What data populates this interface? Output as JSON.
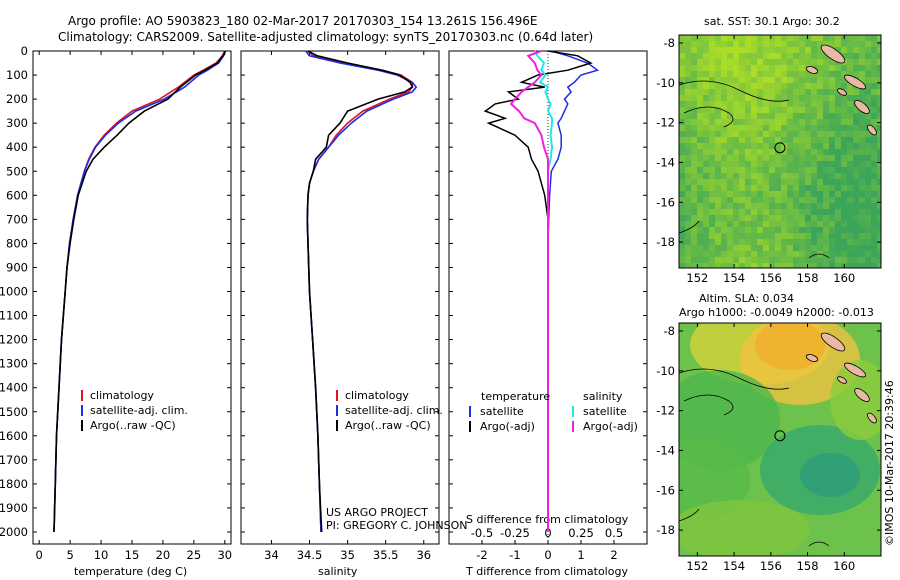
{
  "header": {
    "line1": "Argo profile: AO 5903823_180 02-Mar-2017 20170303_154 13.261S 156.496E",
    "line2": "Climatology: CARS2009. Satellite-adjusted climatology: synTS_20170303.nc (0.64d later)"
  },
  "colors": {
    "clim": "#e0141e",
    "sat": "#1c2ee6",
    "argo": "#000000",
    "sat_s": "#22e6e6",
    "argo_s": "#ee22dd"
  },
  "depth_ticks": [
    "0",
    "100",
    "200",
    "300",
    "400",
    "500",
    "600",
    "700",
    "800",
    "900",
    "1000",
    "1100",
    "1200",
    "1300",
    "1400",
    "1500",
    "1600",
    "1700",
    "1800",
    "1900",
    "2000"
  ],
  "chart_data": [
    {
      "type": "line",
      "xlabel": "temperature (deg C)",
      "xlim": [
        -1,
        31
      ],
      "ylim": [
        2000,
        0
      ],
      "xticks": [
        "0",
        "5",
        "10",
        "15",
        "20",
        "25",
        "30"
      ],
      "legend": [
        "climatology",
        "satellite-adj. clim.",
        "Argo(..raw -QC)"
      ],
      "depth": [
        0,
        20,
        50,
        80,
        100,
        150,
        200,
        250,
        300,
        350,
        400,
        450,
        500,
        600,
        700,
        800,
        900,
        1000,
        1200,
        1400,
        1600,
        1800,
        2000
      ],
      "series": [
        {
          "name": "climatology",
          "values": [
            30.0,
            29.6,
            28.6,
            26.5,
            25.0,
            22.5,
            19.5,
            15.0,
            12.5,
            10.5,
            9.0,
            8.0,
            7.3,
            6.2,
            5.5,
            4.9,
            4.5,
            4.2,
            3.6,
            3.2,
            2.8,
            2.6,
            2.4
          ]
        },
        {
          "name": "satellite-adj. clim.",
          "values": [
            30.1,
            29.8,
            29.0,
            27.2,
            25.8,
            23.5,
            20.2,
            15.6,
            12.8,
            10.7,
            9.1,
            8.1,
            7.3,
            6.2,
            5.5,
            4.9,
            4.5,
            4.2,
            3.6,
            3.2,
            2.8,
            2.6,
            2.4
          ]
        },
        {
          "name": "Argo(..raw -QC)",
          "values": [
            30.1,
            29.7,
            28.8,
            26.8,
            25.3,
            22.8,
            20.8,
            17.0,
            14.5,
            12.6,
            10.5,
            8.7,
            7.6,
            6.3,
            5.6,
            5.0,
            4.5,
            4.2,
            3.6,
            3.2,
            2.8,
            2.6,
            2.4
          ]
        }
      ]
    },
    {
      "type": "line",
      "xlabel": "salinity",
      "xlim": [
        33.6,
        36.2
      ],
      "ylim": [
        2000,
        0
      ],
      "xticks": [
        "34",
        "34.5",
        "35",
        "35.5",
        "36"
      ],
      "legend": [
        "climatology",
        "satellite-adj. clim.",
        "Argo(..raw -QC)"
      ],
      "depth": [
        0,
        20,
        50,
        80,
        100,
        130,
        150,
        170,
        200,
        250,
        300,
        350,
        400,
        450,
        500,
        550,
        600,
        700,
        800,
        1000,
        1200,
        1400,
        1600,
        1800,
        2000
      ],
      "series": [
        {
          "name": "climatology",
          "values": [
            34.48,
            34.55,
            34.95,
            35.45,
            35.7,
            35.85,
            35.85,
            35.8,
            35.55,
            35.2,
            35.0,
            34.85,
            34.75,
            34.62,
            34.55,
            34.5,
            34.48,
            34.47,
            34.48,
            34.5,
            34.54,
            34.58,
            34.61,
            34.63,
            34.65
          ]
        },
        {
          "name": "satellite-adj. clim.",
          "values": [
            34.45,
            34.5,
            34.9,
            35.4,
            35.65,
            35.85,
            35.9,
            35.85,
            35.6,
            35.25,
            35.05,
            34.88,
            34.75,
            34.62,
            34.55,
            34.5,
            34.48,
            34.47,
            34.48,
            34.5,
            34.54,
            34.58,
            34.61,
            34.63,
            34.65
          ]
        },
        {
          "name": "Argo(..raw -QC)",
          "values": [
            34.48,
            34.6,
            35.0,
            35.45,
            35.68,
            35.82,
            35.85,
            35.75,
            35.4,
            35.0,
            34.9,
            34.75,
            34.72,
            34.58,
            34.55,
            34.5,
            34.48,
            34.47,
            34.48,
            34.5,
            34.54,
            34.58,
            34.61,
            34.63,
            34.66
          ]
        }
      ]
    },
    {
      "type": "line",
      "xlabel": "T difference from climatology",
      "xlabel2": "S difference from climatology",
      "xlim_T": [
        -3,
        3
      ],
      "xlim_S": [
        -0.75,
        0.75
      ],
      "ylim": [
        2000,
        0
      ],
      "xticks_T": [
        "-2",
        "-1",
        "0",
        "1",
        "2"
      ],
      "xticks_S": [
        "-0.5",
        "-0.25",
        "0",
        "0.25",
        "0.5"
      ],
      "legend_head": [
        "temperature",
        "salinity"
      ],
      "legend": [
        "satellite",
        "Argo(-adj)",
        "satellite",
        "Argo(-adj)"
      ],
      "depth": [
        0,
        20,
        50,
        80,
        100,
        130,
        150,
        170,
        200,
        220,
        250,
        280,
        300,
        350,
        400,
        450,
        500,
        600,
        700,
        800,
        1000,
        1200,
        1400,
        1600,
        1800,
        2000
      ],
      "series": [
        {
          "name": "temperature satellite",
          "values": [
            0.1,
            0.6,
            1.2,
            1.5,
            1.0,
            0.8,
            0.6,
            0.7,
            0.5,
            0.6,
            0.5,
            0.4,
            0.3,
            0.4,
            0.4,
            0.3,
            0.1,
            0.05,
            0.02,
            0.0,
            0.0,
            0.0,
            0.0,
            0.0,
            0.0,
            0.0
          ]
        },
        {
          "name": "temperature Argo(-adj)",
          "values": [
            0.0,
            0.9,
            1.3,
            0.6,
            -0.3,
            -0.8,
            -0.1,
            -1.2,
            -0.9,
            -1.6,
            -1.9,
            -1.3,
            -1.8,
            -1.0,
            -0.6,
            -0.5,
            -0.3,
            -0.1,
            0.0,
            0.0,
            0.0,
            0.0,
            0.0,
            0.0,
            0.0,
            0.0
          ]
        },
        {
          "name": "salinity satellite",
          "values": [
            -0.1,
            -0.08,
            -0.03,
            -0.05,
            -0.02,
            -0.06,
            0.0,
            -0.02,
            0.0,
            0.02,
            0.0,
            0.03,
            0.03,
            0.02,
            0.03,
            0.02,
            0.0,
            0.0,
            0.0,
            0.0,
            0.0,
            0.0,
            0.0,
            0.0,
            0.0,
            0.0
          ]
        },
        {
          "name": "salinity Argo(-adj)",
          "values": [
            -0.05,
            -0.15,
            -0.1,
            -0.08,
            -0.05,
            -0.1,
            -0.15,
            -0.2,
            -0.25,
            -0.28,
            -0.22,
            -0.18,
            -0.1,
            -0.05,
            -0.03,
            0.0,
            0.0,
            0.0,
            0.0,
            0.0,
            0.0,
            0.0,
            0.0,
            0.0,
            0.0,
            0.0
          ]
        }
      ]
    },
    {
      "type": "heatmap",
      "title": "sat. SST: 30.1  Argo: 30.2",
      "xticks": [
        "152",
        "154",
        "156",
        "158",
        "160"
      ],
      "yticks": [
        "-8",
        "-10",
        "-12",
        "-14",
        "-16",
        "-18"
      ],
      "xlim": [
        151,
        162
      ],
      "ylim": [
        -19.3,
        -7.6
      ],
      "marker": [
        156.496,
        -13.261
      ]
    },
    {
      "type": "heatmap",
      "title_line1": "Altim. SLA: 0.034",
      "title_line2": "Argo h1000: -0.0049 h2000: -0.013",
      "xticks": [
        "152",
        "154",
        "156",
        "158",
        "160"
      ],
      "yticks": [
        "-8",
        "-10",
        "-12",
        "-14",
        "-16",
        "-18"
      ],
      "xlim": [
        151,
        162
      ],
      "ylim": [
        -19.3,
        -7.6
      ],
      "marker": [
        156.496,
        -13.261
      ]
    }
  ],
  "project": {
    "line1": "US ARGO PROJECT",
    "line2": "PI: GREGORY C. JOHNSON"
  },
  "credit": "©IMOS 10-Mar-2017 20:39:46"
}
